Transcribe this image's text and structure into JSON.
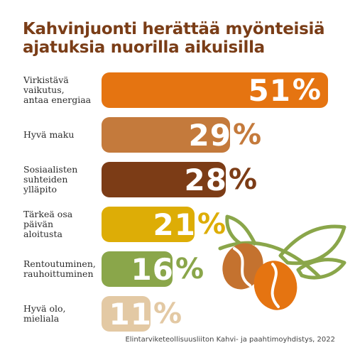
{
  "header": {
    "title_line1": "Kahvinjuonti herättää myönteisiä",
    "title_line2": "ajatuksia nuorilla aikuisilla"
  },
  "colors": {
    "title": "#7a3d17",
    "bars": [
      "#e57411",
      "#c47a3c",
      "#7c3c16",
      "#ddad06",
      "#8aa64a",
      "#e3c9a4"
    ],
    "leaf": "#8aa64a"
  },
  "illustration": {
    "icons": [
      "coffee-bean-icon",
      "coffee-leaf-icon"
    ]
  },
  "chart_data": {
    "type": "bar",
    "orientation": "horizontal",
    "title": "Kahvinjuonti herättää myönteisiä ajatuksia nuorilla aikuisilla",
    "categories": [
      [
        "Virkistävä",
        "vaikutus,",
        "antaa energiaa"
      ],
      [
        "Hyvä maku"
      ],
      [
        "Sosiaalisten",
        "suhteiden",
        "ylläpito"
      ],
      [
        "Tärkeä osa",
        "päivän",
        "aloitusta"
      ],
      [
        "Rentoutuminen,",
        "rauhoittuminen"
      ],
      [
        "Hyvä olo,",
        "mieliala"
      ]
    ],
    "values": [
      51,
      29,
      28,
      21,
      16,
      11
    ],
    "value_labels": [
      "51",
      "29",
      "28",
      "21",
      "16",
      "11"
    ],
    "unit": "%",
    "xlim": [
      0,
      51
    ]
  },
  "source": "Elintarviketeollisuusliiton Kahvi- ja paahtimoyhdistys, 2022"
}
